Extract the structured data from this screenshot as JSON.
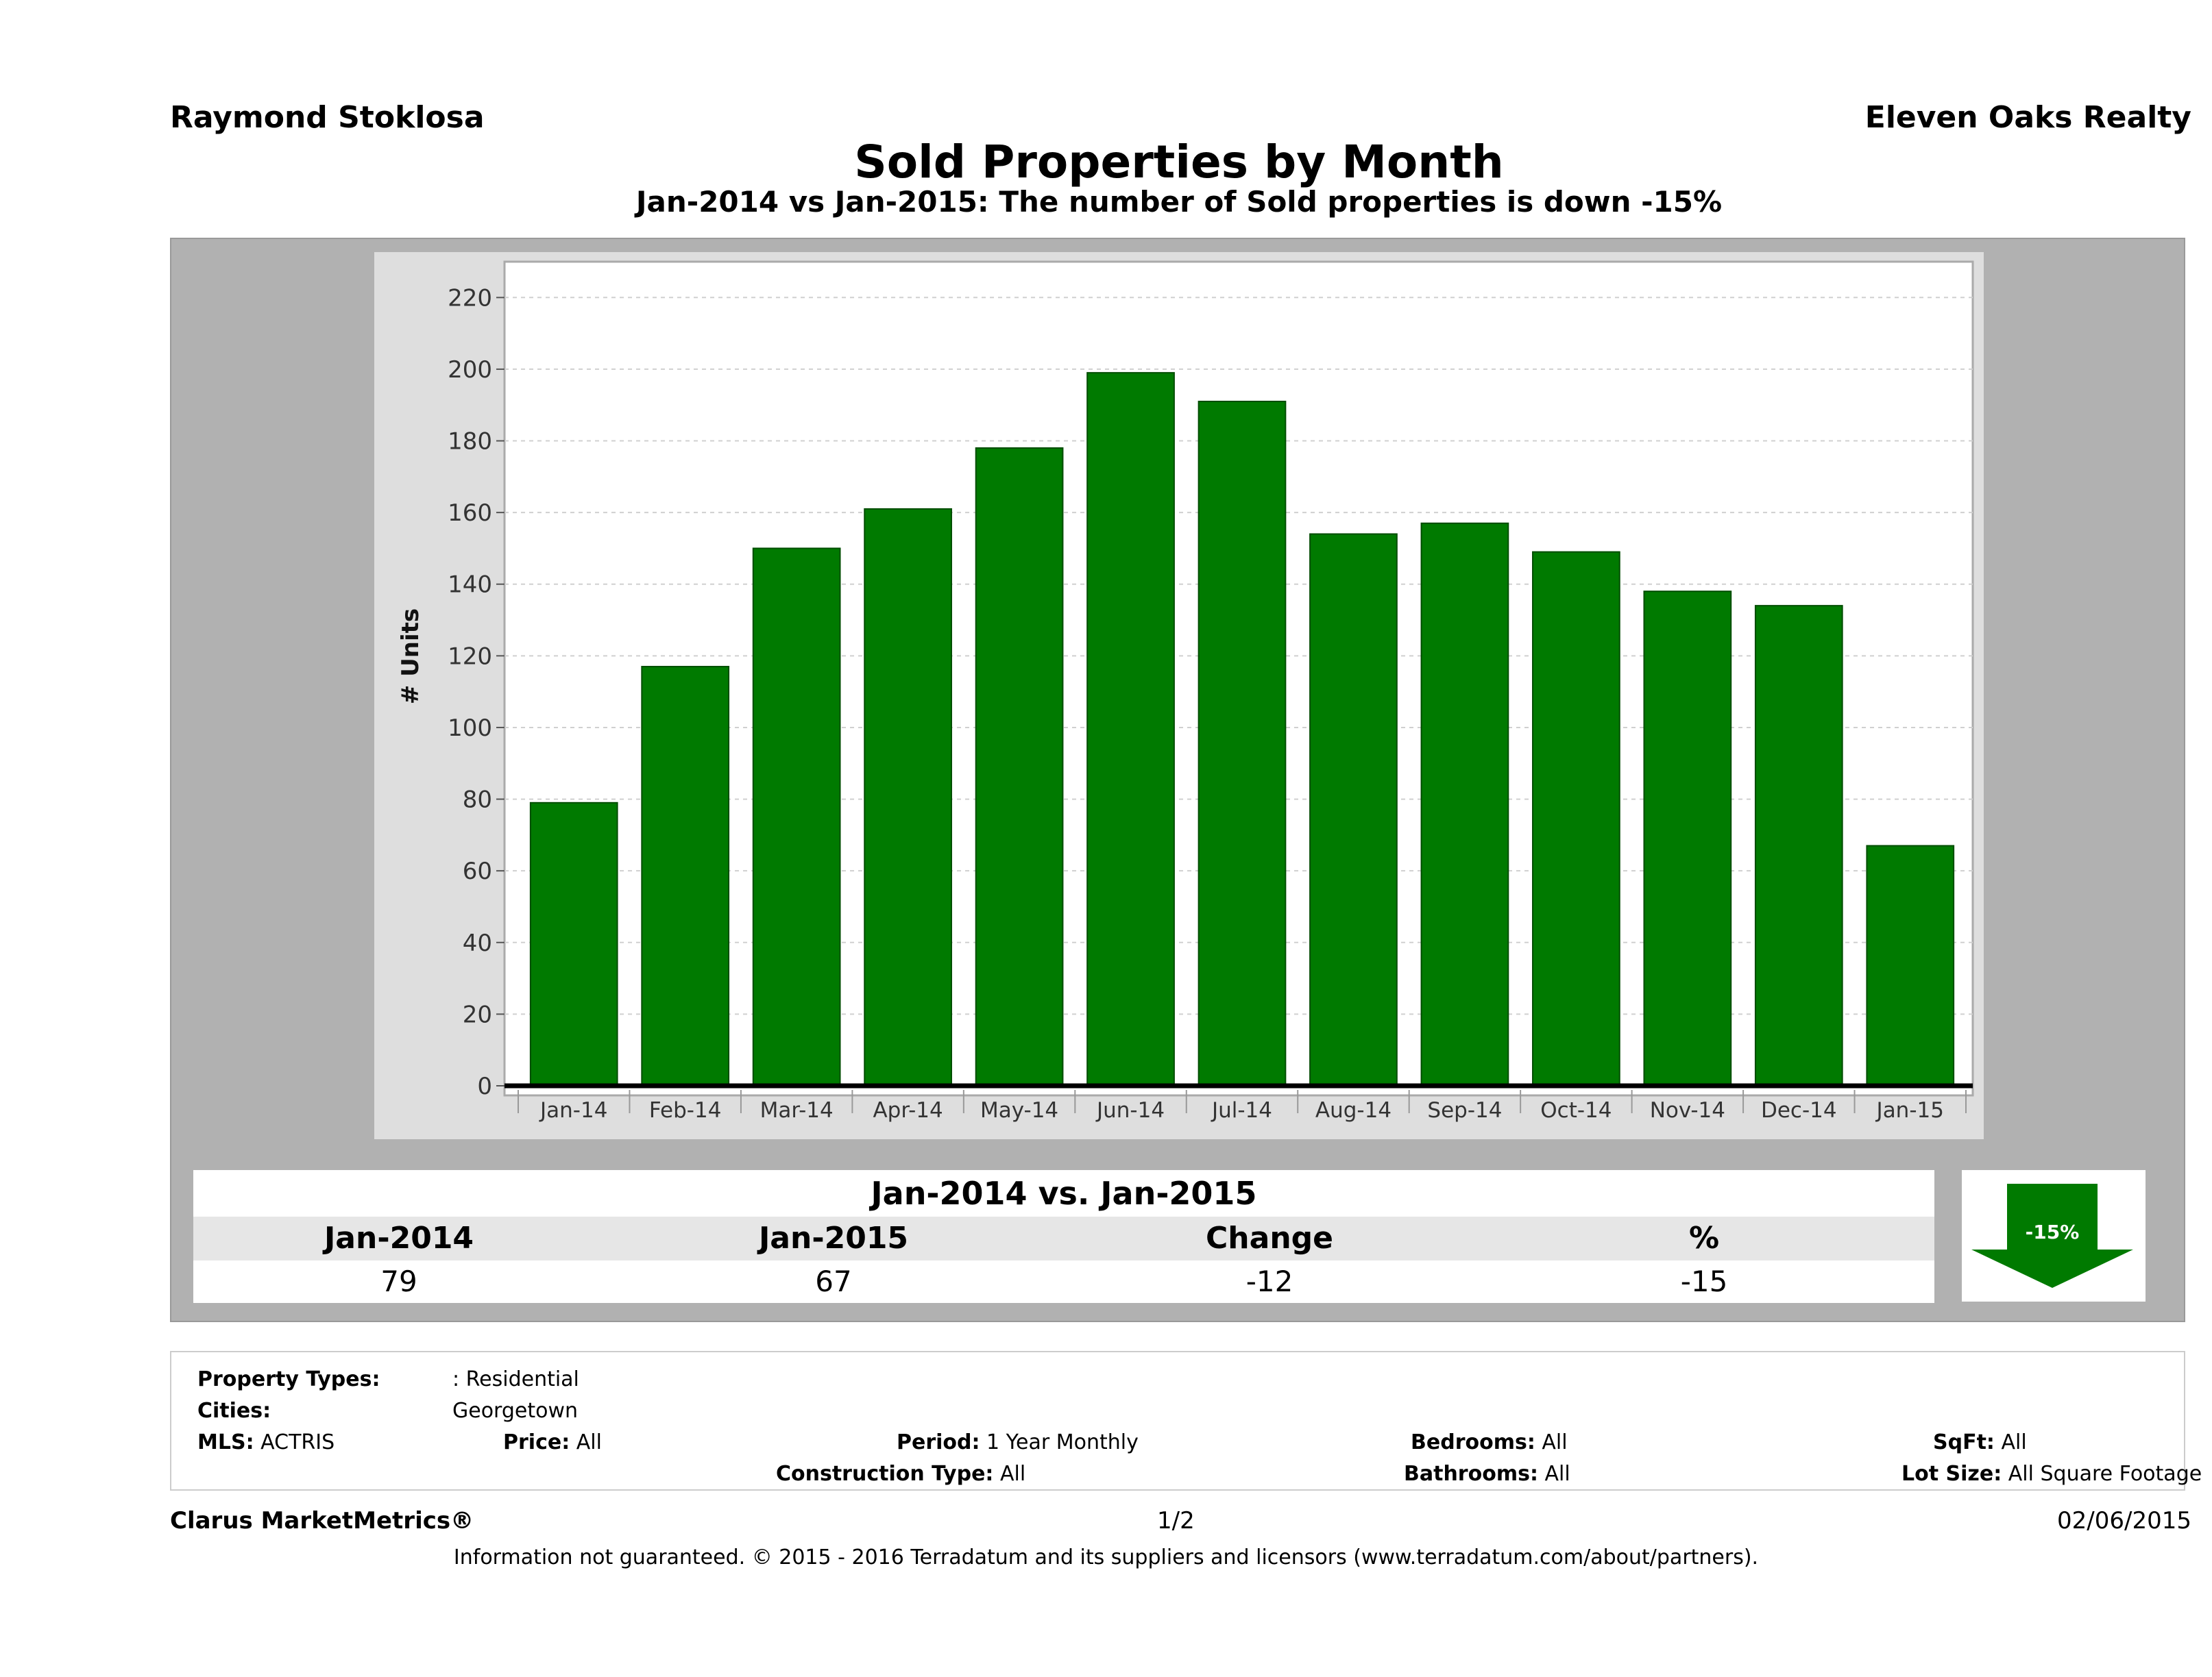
{
  "header": {
    "agent_name": "Raymond Stoklosa",
    "company_name": "Eleven Oaks Realty",
    "title": "Sold Properties by Month",
    "subtitle": "Jan-2014 vs Jan-2015: The number of Sold  properties is down -15%"
  },
  "chart_data": {
    "type": "bar",
    "categories": [
      "Jan-14",
      "Feb-14",
      "Mar-14",
      "Apr-14",
      "May-14",
      "Jun-14",
      "Jul-14",
      "Aug-14",
      "Sep-14",
      "Oct-14",
      "Nov-14",
      "Dec-14",
      "Jan-15"
    ],
    "values": [
      79,
      117,
      150,
      161,
      178,
      199,
      191,
      154,
      157,
      149,
      138,
      134,
      67
    ],
    "ylabel": "# Units",
    "yticks": [
      0,
      20,
      40,
      60,
      80,
      100,
      120,
      140,
      160,
      180,
      200,
      220
    ],
    "ylim": [
      0,
      230
    ],
    "grid": true,
    "bar_color": "#007a00"
  },
  "summary": {
    "title": "Jan-2014 vs. Jan-2015",
    "headers": [
      "Jan-2014",
      "Jan-2015",
      "Change",
      "%"
    ],
    "values": [
      "79",
      "67",
      "-12",
      "-15"
    ],
    "badge": "-15%",
    "badge_color": "#007a00"
  },
  "criteria": {
    "property_types_label": "Property Types:",
    "property_types_value": ": Residential",
    "cities_label": "Cities:",
    "cities_value": "Georgetown",
    "mls_label": "MLS:",
    "mls_value": "ACTRIS",
    "price_label": "Price:",
    "price_value": "All",
    "period_label": "Period:",
    "period_value": "1 Year Monthly",
    "construction_label": "Construction Type:",
    "construction_value": "All",
    "bedrooms_label": "Bedrooms:",
    "bedrooms_value": "All",
    "bathrooms_label": "Bathrooms:",
    "bathrooms_value": "All",
    "sqft_label": "SqFt:",
    "sqft_value": "All",
    "lotsize_label": "Lot Size:",
    "lotsize_value": "All Square Footage"
  },
  "footer": {
    "brand": "Clarus MarketMetrics®",
    "page": "1/2",
    "date": "02/06/2015",
    "disclaimer": "Information not guaranteed. © 2015 - 2016 Terradatum and its suppliers and licensors (www.terradatum.com/about/partners)."
  }
}
